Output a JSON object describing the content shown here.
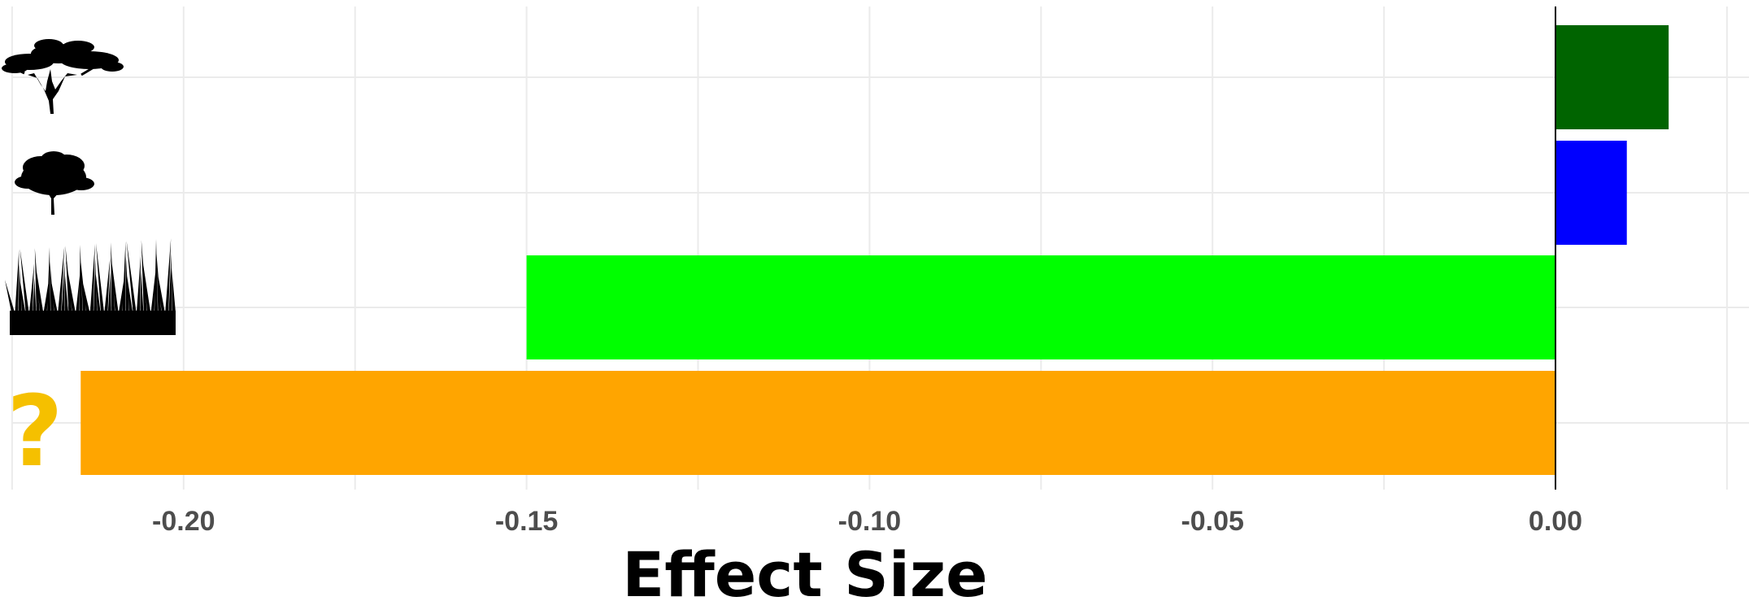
{
  "chart_data": {
    "type": "bar",
    "orientation": "horizontal",
    "categories": [
      "acacia-tree",
      "shrub-tree",
      "grass",
      "unknown"
    ],
    "values": [
      0.0165,
      0.0104,
      -0.15,
      -0.215
    ],
    "bar_colors": [
      "#006400",
      "#0000FF",
      "#00FF00",
      "#FFA500"
    ],
    "xlabel": "Effect Size",
    "ylabel": "",
    "xlim": [
      -0.225,
      0.025
    ],
    "xticks": [
      -0.2,
      -0.15,
      -0.1,
      -0.05,
      0.0
    ],
    "xtick_labels": [
      "-0.20",
      "-0.15",
      "-0.10",
      "-0.05",
      "0.00"
    ],
    "grid": true,
    "legend": "none",
    "category_icons": [
      "acacia-tree-icon",
      "shrub-tree-icon",
      "grass-icon",
      "question-mark-icon"
    ],
    "unknown_label": "?",
    "unknown_label_color": "#F5C000"
  }
}
